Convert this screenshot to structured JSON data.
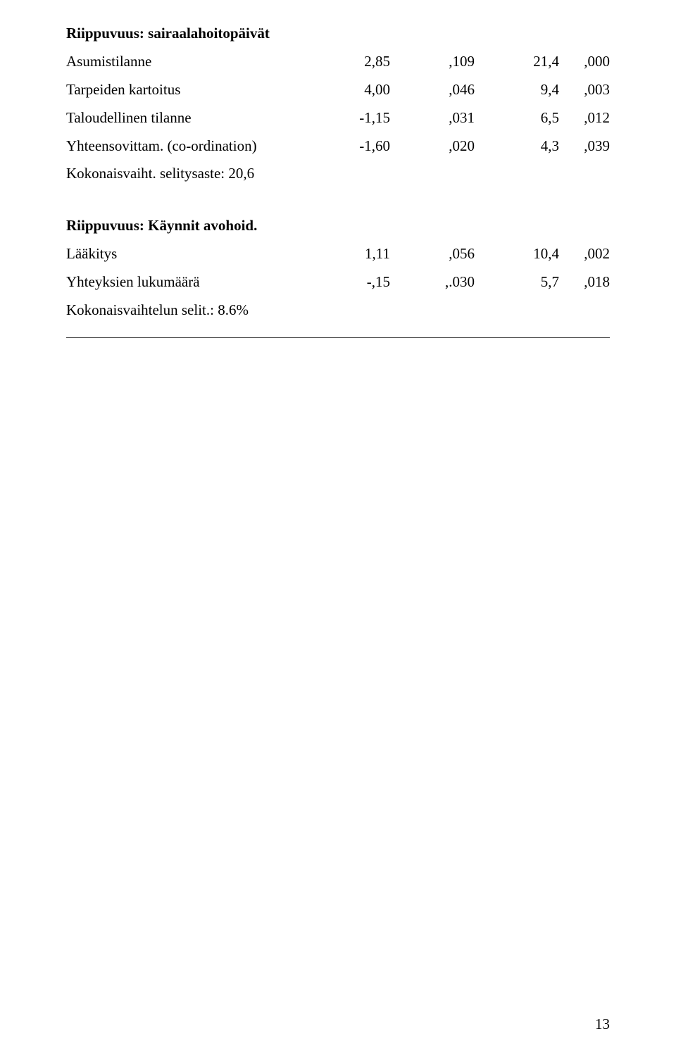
{
  "section1": {
    "title": "Riippuvuus: sairaalahoitopäivät",
    "rows": [
      {
        "label": "Asumistilanne",
        "v1": "2,85",
        "v2": ",109",
        "v3": "21,4",
        "v4": ",000"
      },
      {
        "label": "Tarpeiden kartoitus",
        "v1": "4,00",
        "v2": ",046",
        "v3": "9,4",
        "v4": ",003"
      },
      {
        "label": "Taloudellinen tilanne",
        "v1": "-1,15",
        "v2": ",031",
        "v3": "6,5",
        "v4": ",012"
      },
      {
        "label": "Yhteensovittam. (co-ordination)",
        "v1": "-1,60",
        "v2": ",020",
        "v3": "4,3",
        "v4": ",039"
      }
    ],
    "footer": "Kokonaisvaiht. selitysaste: 20,6"
  },
  "section2": {
    "title": "Riippuvuus: Käynnit avohoid.",
    "rows": [
      {
        "label": "Lääkitys",
        "v1": "1,11",
        "v2": ",056",
        "v3": "10,4",
        "v4": ",002"
      },
      {
        "label": "Yhteyksien lukumäärä",
        "v1": "-,15",
        "v2": ",.030",
        "v3": "5,7",
        "v4": ",018"
      }
    ],
    "footer": "Kokonaisvaihtelun selit.: 8.6%"
  },
  "page_number": "13"
}
